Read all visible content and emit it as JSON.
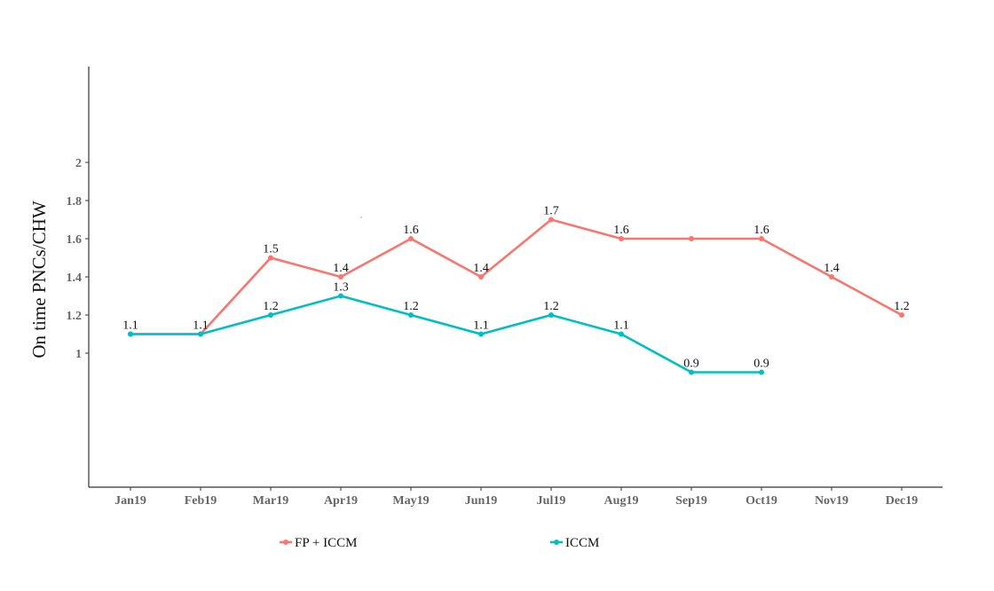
{
  "chart_data": {
    "type": "line",
    "title": "",
    "xlabel": "",
    "ylabel": "On time PNCs/CHW",
    "categories": [
      "Jan19",
      "Feb19",
      "Mar19",
      "Apr19",
      "May19",
      "Jun19",
      "Jul19",
      "Aug19",
      "Sep19",
      "Oct19",
      "Nov19",
      "Dec19"
    ],
    "yticks": [
      "1",
      "1.2",
      "1.4",
      "1.6",
      "1.8",
      "2"
    ],
    "ylim": [
      0.3,
      2.5
    ],
    "grid": false,
    "legend_position": "bottom",
    "series": [
      {
        "name": "FP + ICCM",
        "color": "#F8766D",
        "values": [
          1.1,
          1.1,
          1.5,
          1.4,
          1.6,
          1.4,
          1.7,
          1.6,
          1.6,
          1.6,
          1.4,
          1.2
        ],
        "labels": [
          "",
          "1.1",
          "1.5",
          "1.4",
          "1.6",
          "1.4",
          "1.7",
          "1.6",
          "",
          "1.6",
          "1.4",
          "1.2"
        ]
      },
      {
        "name": "ICCM",
        "color": "#00BFC4",
        "values": [
          1.1,
          1.1,
          1.2,
          1.3,
          1.2,
          1.1,
          1.2,
          1.1,
          0.9,
          0.9,
          null,
          null
        ],
        "labels": [
          "1.1",
          "",
          "1.2",
          "1.3",
          "1.2",
          "1.1",
          "1.2",
          "1.1",
          "0.9",
          "0.9",
          "",
          ""
        ]
      }
    ]
  }
}
